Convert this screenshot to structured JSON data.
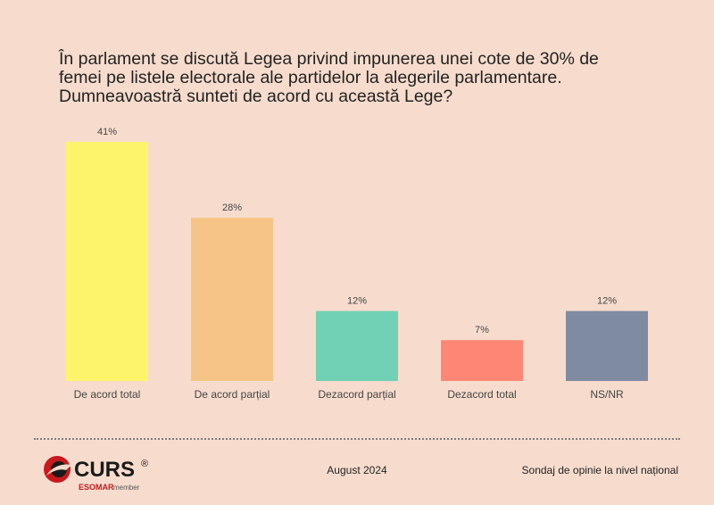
{
  "header": {
    "title_lines": [
      "În parlament se discută Legea privind impunerea unei cote de 30% de",
      "femei pe listele electorale ale partidelor la alegerile parlamentare.",
      "Dumneavoastră sunteti de acord cu această Lege?"
    ]
  },
  "chart_data": {
    "type": "bar",
    "categories": [
      "De acord total",
      "De acord parțial",
      "Dezacord parțial",
      "Dezacord total",
      "NS/NR"
    ],
    "values": [
      41,
      28,
      12,
      7,
      12
    ],
    "value_labels": [
      "41%",
      "28%",
      "12%",
      "7%",
      "12%"
    ],
    "colors": [
      "#fdf46b",
      "#f6c486",
      "#71d1b5",
      "#fd8674",
      "#7e8ba0"
    ],
    "ylim": [
      0,
      41
    ],
    "grid": false,
    "legend": "none"
  },
  "footer": {
    "logo_text": "CURS",
    "logo_registered": "®",
    "logo_esomar": "ESOMAR",
    "logo_member": "member",
    "date": "August 2024",
    "note": "Sondaj de opinie la nivel național"
  },
  "colors": {
    "background": "#f7dccd",
    "logo_red": "#c8191e",
    "logo_dark": "#1a1a1a"
  },
  "icons": [
    "curs-logo-icon"
  ]
}
